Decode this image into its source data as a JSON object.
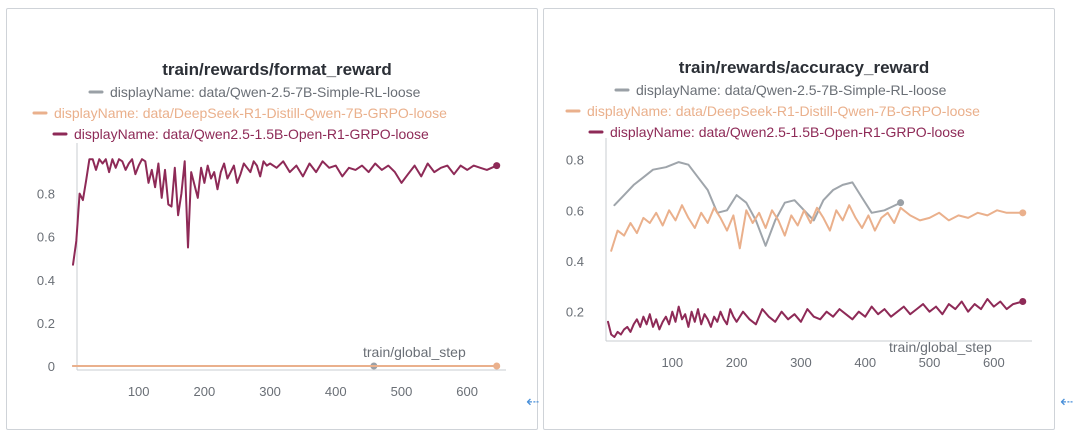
{
  "colors": {
    "gray": "#9aa0a6",
    "orange": "#eab08c",
    "maroon": "#8e2a57",
    "axis": "#c8ccd1",
    "tick": "#6a6f76"
  },
  "icons": {
    "scroll_left": "left-arrow-icon",
    "scroll_right": "left-arrow-icon"
  },
  "scroll_glyph": "⇠",
  "chart_data": [
    {
      "type": "line",
      "title": "train/rewards/format_reward",
      "xlabel": "train/global_step",
      "ylabel": "",
      "xlim": [
        0,
        650
      ],
      "ylim": [
        0,
        0.97
      ],
      "xticks": [
        "100",
        "200",
        "300",
        "400",
        "500",
        "600"
      ],
      "xtick_values": [
        100,
        200,
        300,
        400,
        500,
        600
      ],
      "yticks": [
        "0",
        "0.2",
        "0.4",
        "0.6",
        "0.8"
      ],
      "ytick_values": [
        0,
        0.2,
        0.4,
        0.6,
        0.8
      ],
      "series": [
        {
          "name": "displayName: data/Qwen-2.5-7B-Simple-RL-loose",
          "color": "#9aa0a6",
          "x": [
            0,
            100,
            200,
            300,
            400,
            458
          ],
          "y": [
            0,
            0,
            0,
            0,
            0,
            0
          ]
        },
        {
          "name": "displayName: data/DeepSeek-R1-Distill-Qwen-7B-GRPO-loose",
          "color": "#eab08c",
          "x": [
            0,
            100,
            200,
            300,
            400,
            500,
            600,
            645
          ],
          "y": [
            0,
            0,
            0,
            0,
            0,
            0,
            0,
            0
          ]
        },
        {
          "name": "displayName: data/Qwen2.5-1.5B-Open-R1-GRPO-loose",
          "color": "#8e2a57",
          "x": [
            0,
            5,
            10,
            15,
            20,
            25,
            30,
            35,
            40,
            45,
            50,
            55,
            60,
            65,
            70,
            75,
            80,
            85,
            90,
            95,
            100,
            105,
            110,
            115,
            120,
            125,
            130,
            135,
            140,
            145,
            150,
            155,
            160,
            165,
            170,
            175,
            180,
            185,
            190,
            195,
            200,
            205,
            210,
            215,
            220,
            225,
            230,
            235,
            240,
            245,
            250,
            255,
            260,
            265,
            270,
            275,
            280,
            285,
            290,
            295,
            300,
            310,
            320,
            330,
            340,
            350,
            360,
            370,
            380,
            390,
            400,
            410,
            420,
            430,
            440,
            450,
            460,
            470,
            480,
            490,
            500,
            510,
            520,
            530,
            540,
            550,
            560,
            570,
            580,
            590,
            600,
            610,
            620,
            630,
            645
          ],
          "y": [
            0.47,
            0.58,
            0.8,
            0.77,
            0.86,
            0.96,
            0.96,
            0.91,
            0.96,
            0.94,
            0.96,
            0.9,
            0.96,
            0.92,
            0.96,
            0.95,
            0.91,
            0.94,
            0.96,
            0.89,
            0.93,
            0.96,
            0.95,
            0.85,
            0.91,
            0.83,
            0.94,
            0.78,
            0.91,
            0.75,
            0.74,
            0.92,
            0.7,
            0.8,
            0.95,
            0.55,
            0.9,
            0.84,
            0.78,
            0.92,
            0.85,
            0.93,
            0.87,
            0.9,
            0.82,
            0.9,
            0.94,
            0.87,
            0.9,
            0.93,
            0.85,
            0.89,
            0.94,
            0.92,
            0.9,
            0.95,
            0.93,
            0.88,
            0.95,
            0.93,
            0.94,
            0.92,
            0.95,
            0.9,
            0.93,
            0.88,
            0.94,
            0.9,
            0.95,
            0.92,
            0.93,
            0.88,
            0.92,
            0.91,
            0.93,
            0.9,
            0.94,
            0.91,
            0.93,
            0.9,
            0.85,
            0.89,
            0.93,
            0.88,
            0.94,
            0.9,
            0.92,
            0.93,
            0.89,
            0.93,
            0.91,
            0.93,
            0.92,
            0.91,
            0.93
          ]
        }
      ]
    },
    {
      "type": "line",
      "title": "train/rewards/accuracy_reward",
      "xlabel": "train/global_step",
      "ylabel": "",
      "xlim": [
        0,
        650
      ],
      "ylim": [
        0.1,
        0.83
      ],
      "xticks": [
        "100",
        "200",
        "300",
        "400",
        "500",
        "600"
      ],
      "xtick_values": [
        100,
        200,
        300,
        400,
        500,
        600
      ],
      "yticks": [
        "0.2",
        "0.4",
        "0.6",
        "0.8"
      ],
      "ytick_values": [
        0.2,
        0.4,
        0.6,
        0.8
      ],
      "series": [
        {
          "name": "displayName: data/Qwen-2.5-7B-Simple-RL-loose",
          "color": "#9aa0a6",
          "x": [
            10,
            25,
            40,
            55,
            70,
            90,
            110,
            125,
            140,
            155,
            170,
            185,
            200,
            215,
            230,
            245,
            260,
            275,
            290,
            305,
            320,
            335,
            350,
            365,
            380,
            395,
            410,
            430,
            455
          ],
          "y": [
            0.62,
            0.66,
            0.7,
            0.73,
            0.76,
            0.77,
            0.79,
            0.78,
            0.73,
            0.68,
            0.59,
            0.6,
            0.66,
            0.63,
            0.56,
            0.46,
            0.56,
            0.63,
            0.64,
            0.6,
            0.56,
            0.64,
            0.68,
            0.7,
            0.71,
            0.65,
            0.59,
            0.6,
            0.63
          ]
        },
        {
          "name": "displayName: data/DeepSeek-R1-Distill-Qwen-7B-GRPO-loose",
          "color": "#eab08c",
          "x": [
            5,
            15,
            25,
            35,
            45,
            55,
            65,
            75,
            85,
            95,
            105,
            115,
            125,
            135,
            145,
            155,
            165,
            175,
            185,
            195,
            205,
            215,
            225,
            235,
            245,
            255,
            265,
            275,
            285,
            295,
            305,
            315,
            325,
            335,
            345,
            355,
            365,
            375,
            385,
            395,
            405,
            415,
            425,
            435,
            445,
            455,
            470,
            485,
            500,
            515,
            530,
            545,
            560,
            575,
            590,
            605,
            620,
            645
          ],
          "y": [
            0.44,
            0.52,
            0.5,
            0.55,
            0.51,
            0.57,
            0.55,
            0.59,
            0.54,
            0.6,
            0.56,
            0.62,
            0.57,
            0.53,
            0.59,
            0.55,
            0.61,
            0.57,
            0.52,
            0.58,
            0.45,
            0.6,
            0.55,
            0.59,
            0.53,
            0.6,
            0.56,
            0.5,
            0.58,
            0.54,
            0.6,
            0.55,
            0.61,
            0.57,
            0.52,
            0.6,
            0.56,
            0.62,
            0.57,
            0.53,
            0.58,
            0.52,
            0.57,
            0.59,
            0.55,
            0.61,
            0.58,
            0.56,
            0.57,
            0.59,
            0.56,
            0.58,
            0.57,
            0.59,
            0.58,
            0.6,
            0.59,
            0.59
          ]
        },
        {
          "name": "displayName: data/Qwen2.5-1.5B-Open-R1-GRPO-loose",
          "color": "#8e2a57",
          "x": [
            0,
            5,
            10,
            15,
            20,
            25,
            30,
            35,
            40,
            45,
            50,
            55,
            60,
            65,
            70,
            75,
            80,
            85,
            90,
            95,
            100,
            105,
            110,
            115,
            120,
            125,
            130,
            135,
            140,
            145,
            150,
            155,
            160,
            165,
            170,
            175,
            180,
            185,
            190,
            195,
            200,
            210,
            220,
            230,
            240,
            250,
            260,
            270,
            280,
            290,
            300,
            310,
            320,
            330,
            340,
            350,
            360,
            370,
            380,
            390,
            400,
            410,
            420,
            430,
            440,
            450,
            460,
            470,
            480,
            490,
            500,
            510,
            520,
            530,
            540,
            550,
            560,
            570,
            580,
            590,
            600,
            610,
            620,
            630,
            645
          ],
          "y": [
            0.16,
            0.11,
            0.1,
            0.12,
            0.11,
            0.13,
            0.14,
            0.12,
            0.15,
            0.17,
            0.14,
            0.18,
            0.15,
            0.19,
            0.14,
            0.17,
            0.13,
            0.16,
            0.18,
            0.15,
            0.2,
            0.16,
            0.22,
            0.17,
            0.19,
            0.14,
            0.2,
            0.16,
            0.21,
            0.15,
            0.19,
            0.17,
            0.14,
            0.18,
            0.16,
            0.2,
            0.17,
            0.15,
            0.21,
            0.18,
            0.16,
            0.2,
            0.17,
            0.15,
            0.21,
            0.18,
            0.16,
            0.2,
            0.17,
            0.19,
            0.16,
            0.21,
            0.18,
            0.17,
            0.2,
            0.18,
            0.21,
            0.19,
            0.17,
            0.2,
            0.18,
            0.22,
            0.19,
            0.21,
            0.18,
            0.2,
            0.22,
            0.19,
            0.21,
            0.23,
            0.2,
            0.22,
            0.19,
            0.23,
            0.21,
            0.24,
            0.2,
            0.23,
            0.21,
            0.25,
            0.22,
            0.24,
            0.21,
            0.23,
            0.24
          ]
        }
      ]
    }
  ]
}
